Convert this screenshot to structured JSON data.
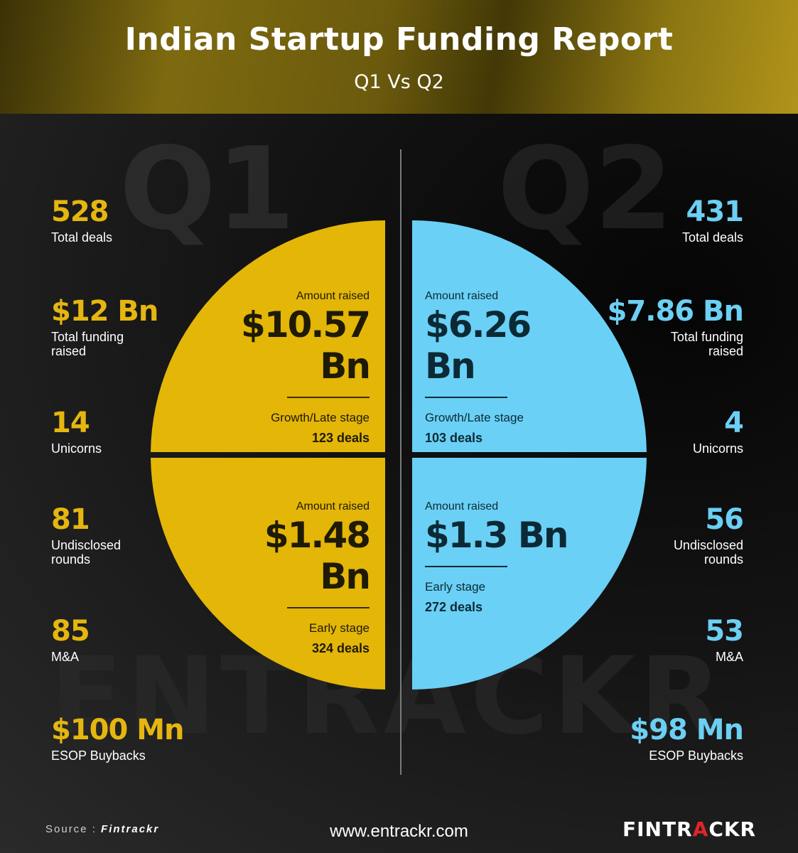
{
  "header": {
    "title": "Indian Startup Funding Report",
    "subtitle": "Q1 Vs Q2"
  },
  "background": {
    "q1": "Q1",
    "q2": "Q2",
    "watermark": "ENTRACKR"
  },
  "colors": {
    "q1": "#e3b608",
    "q2": "#6bd0f5"
  },
  "q1": {
    "stats": [
      {
        "value": "528",
        "label": "Total deals"
      },
      {
        "value": "$12 Bn",
        "label": "Total funding raised"
      },
      {
        "value": "14",
        "label": "Unicorns"
      },
      {
        "value": "81",
        "label": "Undisclosed rounds"
      },
      {
        "value": "85",
        "label": "M&A"
      },
      {
        "value": "$100 Mn",
        "label": "ESOP Buybacks"
      }
    ],
    "segments": [
      {
        "amount_label": "Amount raised",
        "amount": "$10.57 Bn",
        "stage": "Growth/Late stage",
        "deals": "123 deals"
      },
      {
        "amount_label": "Amount raised",
        "amount": "$1.48 Bn",
        "stage": "Early stage",
        "deals": "324 deals"
      }
    ]
  },
  "q2": {
    "stats": [
      {
        "value": "431",
        "label": "Total deals"
      },
      {
        "value": "$7.86 Bn",
        "label": "Total funding raised"
      },
      {
        "value": "4",
        "label": "Unicorns"
      },
      {
        "value": "56",
        "label": "Undisclosed rounds"
      },
      {
        "value": "53",
        "label": "M&A"
      },
      {
        "value": "$98 Mn",
        "label": "ESOP Buybacks"
      }
    ],
    "segments": [
      {
        "amount_label": "Amount raised",
        "amount": "$6.26 Bn",
        "stage": "Growth/Late stage",
        "deals": "103 deals"
      },
      {
        "amount_label": "Amount raised",
        "amount": "$1.3 Bn",
        "stage": "Early stage",
        "deals": "272 deals"
      }
    ]
  },
  "chart_data": {
    "type": "pie",
    "title": "Indian Startup Funding Report",
    "subtitle": "Q1 Vs Q2",
    "categories": [
      "Growth/Late stage",
      "Early stage"
    ],
    "series": [
      {
        "name": "Q1",
        "values": [
          10.57,
          1.48
        ],
        "deals": [
          123,
          324
        ]
      },
      {
        "name": "Q2",
        "values": [
          6.26,
          1.3
        ],
        "deals": [
          103,
          272
        ]
      }
    ]
  },
  "footer": {
    "source_prefix": "Source :",
    "source_name": "Fintrackr",
    "url": "www.entrackr.com",
    "logo_a": "FINTR",
    "logo_b": "A",
    "logo_c": "CKR"
  }
}
